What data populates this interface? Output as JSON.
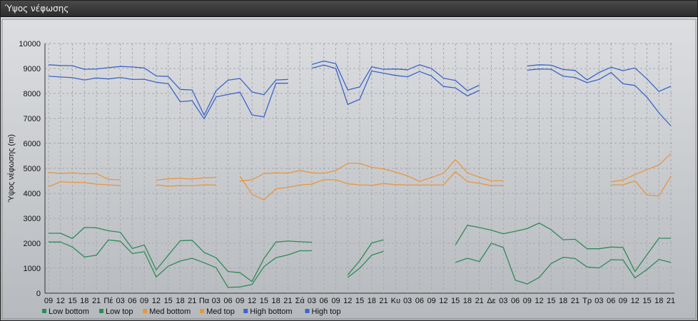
{
  "window": {
    "title": "Ύψος νέφωσης"
  },
  "chart_data": {
    "type": "line",
    "ylabel": "Ύψος νέφωσης (m)",
    "ylim": [
      0,
      10000
    ],
    "yticks": [
      0,
      1000,
      2000,
      3000,
      4000,
      5000,
      6000,
      7000,
      8000,
      9000,
      10000
    ],
    "grid": true,
    "legend_position": "bottom-left",
    "categories": [
      "09",
      "12",
      "15",
      "18",
      "21",
      "Πέ",
      "03",
      "06",
      "09",
      "12",
      "15",
      "18",
      "21",
      "Πα",
      "03",
      "06",
      "09",
      "12",
      "15",
      "18",
      "21",
      "Σά",
      "03",
      "06",
      "09",
      "12",
      "15",
      "18",
      "21",
      "Κυ",
      "03",
      "06",
      "09",
      "12",
      "15",
      "18",
      "21",
      "Δε",
      "03",
      "06",
      "09",
      "12",
      "15",
      "18",
      "21",
      "Τρ",
      "03",
      "06",
      "09",
      "12",
      "15",
      "18",
      "21"
    ],
    "series": [
      {
        "name": "Low bottom",
        "color": "#2e8b57",
        "values": [
          2050,
          2050,
          1850,
          1450,
          1520,
          2130,
          2080,
          1590,
          1660,
          650,
          1080,
          1290,
          1400,
          1220,
          1020,
          230,
          250,
          350,
          1060,
          1420,
          1530,
          1700,
          1700,
          null,
          null,
          630,
          1000,
          1520,
          1680,
          null,
          null,
          null,
          null,
          null,
          1230,
          1400,
          1270,
          2000,
          1830,
          520,
          370,
          630,
          1190,
          1440,
          1390,
          1050,
          1010,
          1340,
          1330,
          610,
          950,
          1350,
          1230
        ]
      },
      {
        "name": "Low top",
        "color": "#2e8b57",
        "values": [
          2400,
          2400,
          2190,
          2630,
          2620,
          2500,
          2440,
          1790,
          1930,
          930,
          1520,
          2100,
          2120,
          1630,
          1420,
          870,
          820,
          470,
          1390,
          2050,
          2090,
          2060,
          2040,
          null,
          null,
          730,
          1300,
          2010,
          2140,
          null,
          null,
          null,
          null,
          null,
          1940,
          2720,
          2630,
          2520,
          2380,
          2480,
          2590,
          2810,
          2540,
          2140,
          2160,
          1780,
          1780,
          1850,
          1830,
          870,
          1540,
          2200,
          2200
        ]
      },
      {
        "name": "Med bottom",
        "color": "#e8963c",
        "values": [
          4270,
          4460,
          4440,
          4430,
          4370,
          4340,
          4310,
          null,
          null,
          4340,
          4280,
          4310,
          4300,
          4340,
          4330,
          null,
          4680,
          3960,
          3730,
          4180,
          4240,
          4330,
          4370,
          4550,
          4540,
          4380,
          4340,
          4320,
          4390,
          4350,
          4330,
          4330,
          4330,
          4340,
          4870,
          4470,
          4400,
          4310,
          4310,
          null,
          null,
          null,
          null,
          null,
          null,
          null,
          null,
          4330,
          4340,
          4500,
          3930,
          3890,
          4680
        ]
      },
      {
        "name": "Med top",
        "color": "#e8963c",
        "values": [
          4840,
          4790,
          4820,
          4780,
          4790,
          4560,
          4540,
          null,
          null,
          4530,
          4580,
          4600,
          4570,
          4620,
          4640,
          null,
          4490,
          4540,
          4790,
          4820,
          4810,
          4910,
          4820,
          4800,
          4910,
          5200,
          5200,
          5040,
          4980,
          4850,
          4700,
          4480,
          4630,
          4810,
          5350,
          4820,
          4650,
          4500,
          4500,
          null,
          null,
          null,
          null,
          null,
          null,
          null,
          null,
          4460,
          4530,
          4750,
          4950,
          5130,
          5590
        ]
      },
      {
        "name": "High bottom",
        "color": "#3c64c8",
        "values": [
          8690,
          8660,
          8630,
          8540,
          8620,
          8580,
          8640,
          8560,
          8570,
          8450,
          8390,
          7670,
          7710,
          6980,
          7860,
          7960,
          8050,
          7140,
          7060,
          8410,
          8410,
          null,
          9010,
          9140,
          9000,
          7560,
          7770,
          8900,
          8810,
          8720,
          8670,
          8880,
          8700,
          8280,
          8220,
          7900,
          8130,
          null,
          null,
          null,
          8930,
          8980,
          8970,
          8690,
          8640,
          8430,
          8560,
          8840,
          8390,
          8320,
          7850,
          7230,
          6700
        ]
      },
      {
        "name": "High top",
        "color": "#3c64c8",
        "values": [
          9150,
          9120,
          9110,
          8970,
          8980,
          9030,
          9080,
          9060,
          9020,
          8700,
          8680,
          8160,
          8140,
          7130,
          8110,
          8530,
          8600,
          8060,
          7950,
          8540,
          8560,
          null,
          9160,
          9300,
          9190,
          8140,
          8260,
          9070,
          8970,
          8980,
          8950,
          9150,
          9000,
          8610,
          8520,
          8110,
          8330,
          null,
          null,
          null,
          9100,
          9150,
          9130,
          8960,
          8920,
          8540,
          8840,
          9050,
          8910,
          9020,
          8580,
          8080,
          8290
        ]
      }
    ]
  }
}
